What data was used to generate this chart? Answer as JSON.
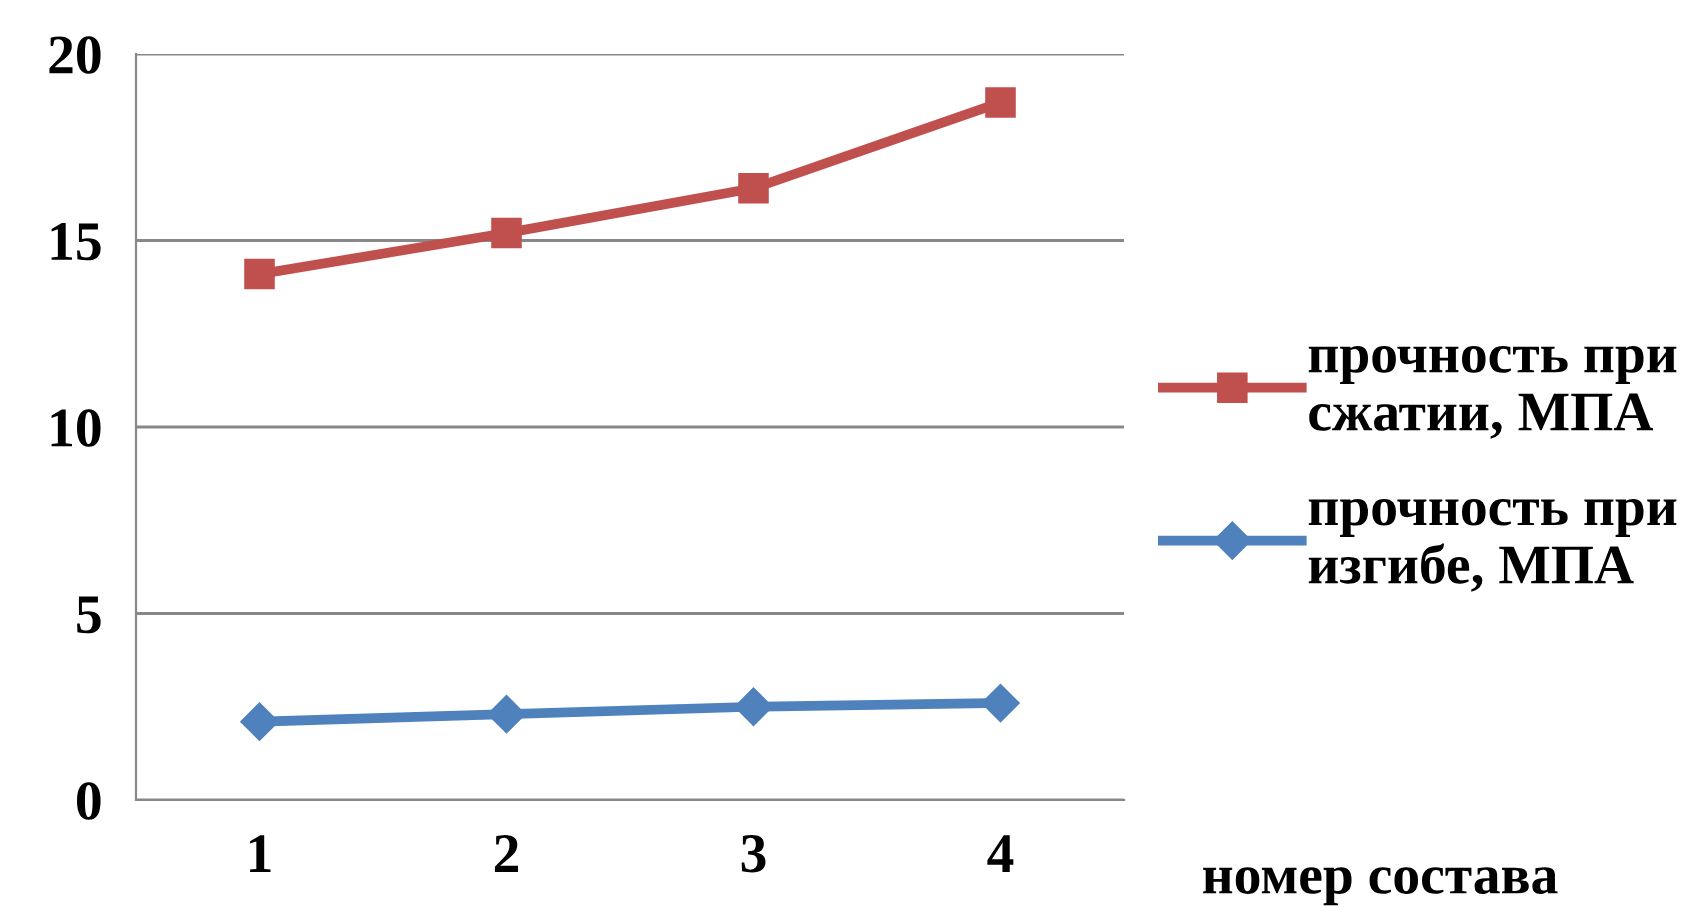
{
  "chart_data": {
    "type": "line",
    "xlabel": "номер состава",
    "categories": [
      "1",
      "2",
      "3",
      "4"
    ],
    "series": [
      {
        "name": "прочность при сжатии, МПА",
        "color": "#c0504d",
        "marker": "square",
        "values": [
          14.1,
          15.2,
          16.4,
          18.7
        ]
      },
      {
        "name": "прочность при изгибе, МПА",
        "color": "#4f81bd",
        "marker": "diamond",
        "values": [
          2.1,
          2.3,
          2.5,
          2.6
        ]
      }
    ],
    "ylim": [
      0,
      20
    ],
    "yticks": [
      0,
      5,
      10,
      15,
      20
    ],
    "grid": "y",
    "legend": "right"
  }
}
